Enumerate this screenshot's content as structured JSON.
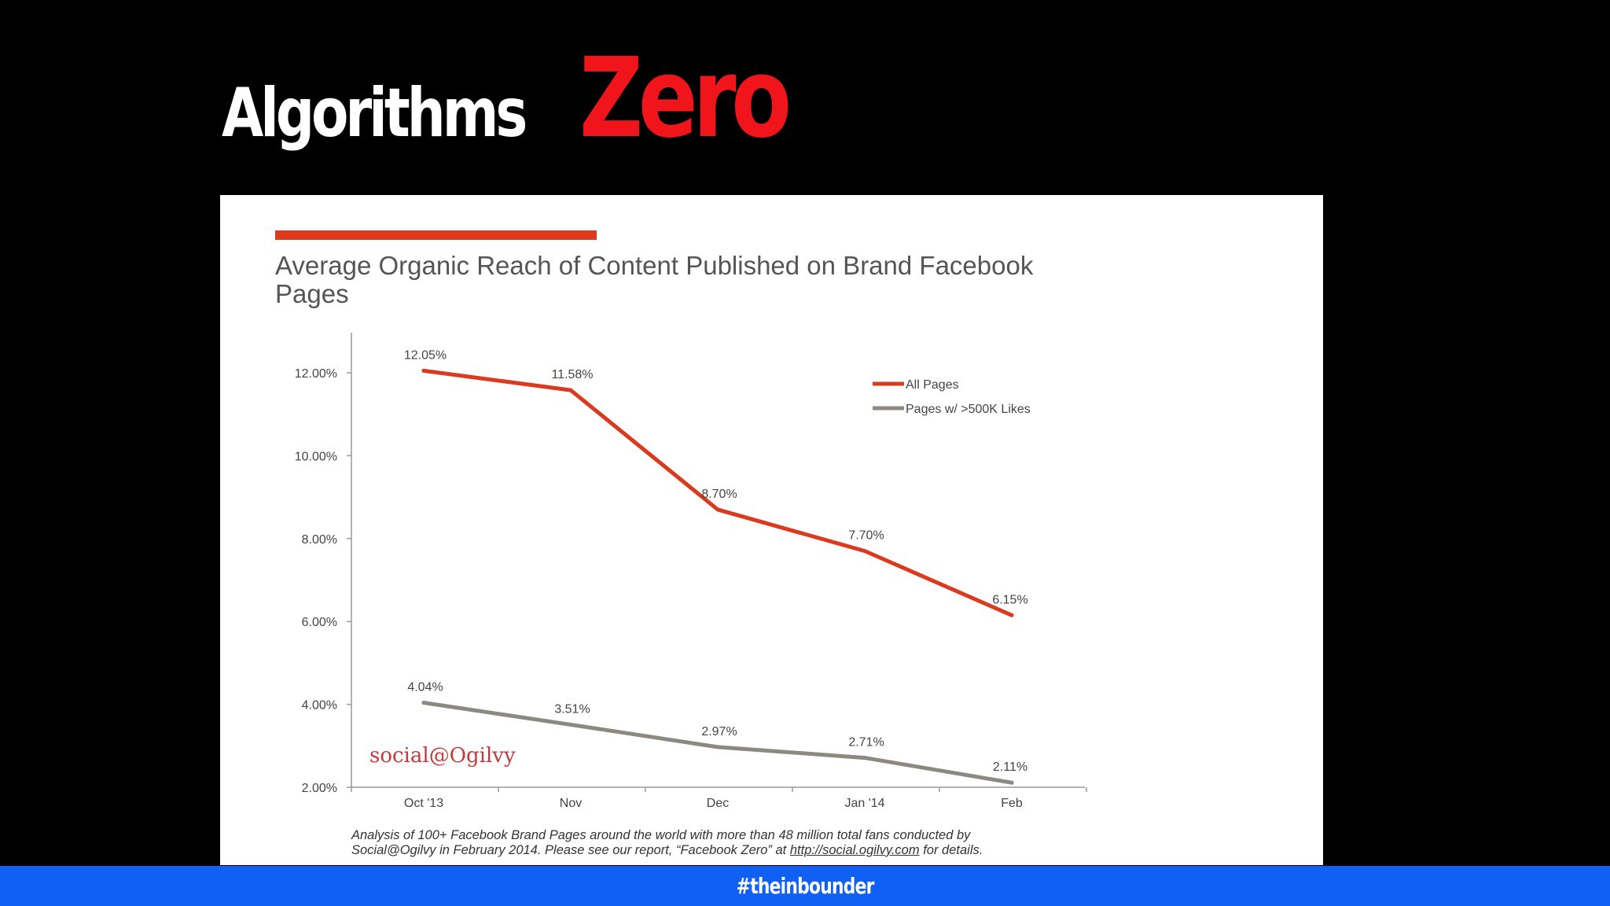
{
  "slide": {
    "title_main": "Algorithms",
    "title_accent": "Zero",
    "hashtag": "#theinbounder"
  },
  "colors": {
    "background": "#000000",
    "title_accent": "#f0141b",
    "footer": "#1160f4",
    "series_all": "#db3a1f",
    "series_500k": "#8c8a80",
    "logo": "#c23b3b"
  },
  "chart_data": {
    "type": "line",
    "title": "Average Organic Reach of Content Published on Brand Facebook Pages",
    "categories": [
      "Oct '13",
      "Nov",
      "Dec",
      "Jan '14",
      "Feb"
    ],
    "ylim": [
      2,
      13
    ],
    "yticks": [
      2,
      4,
      6,
      8,
      10,
      12
    ],
    "ytick_labels": [
      "2.00%",
      "4.00%",
      "6.00%",
      "8.00%",
      "10.00%",
      "12.00%"
    ],
    "grid": false,
    "legend_position": "top-right",
    "series": [
      {
        "name": "All Pages",
        "values": [
          12.05,
          11.58,
          8.7,
          7.7,
          6.15
        ],
        "labels": [
          "12.05%",
          "11.58%",
          "8.70%",
          "7.70%",
          "6.15%"
        ]
      },
      {
        "name": "Pages w/ >500K Likes",
        "values": [
          4.04,
          3.51,
          2.97,
          2.71,
          2.11
        ],
        "labels": [
          "4.04%",
          "3.51%",
          "2.97%",
          "2.71%",
          "2.11%"
        ]
      }
    ],
    "logo_text": "social@Ogilvy",
    "footnote_line1": "Analysis of 100+ Facebook Brand Pages around the world with more than 48 million total fans conducted by",
    "footnote_line2_pre": "Social@Ogilvy in February 2014. Please see our report, “Facebook Zero” at ",
    "footnote_link": "http://social.ogilvy.com",
    "footnote_line2_post": " for details."
  }
}
